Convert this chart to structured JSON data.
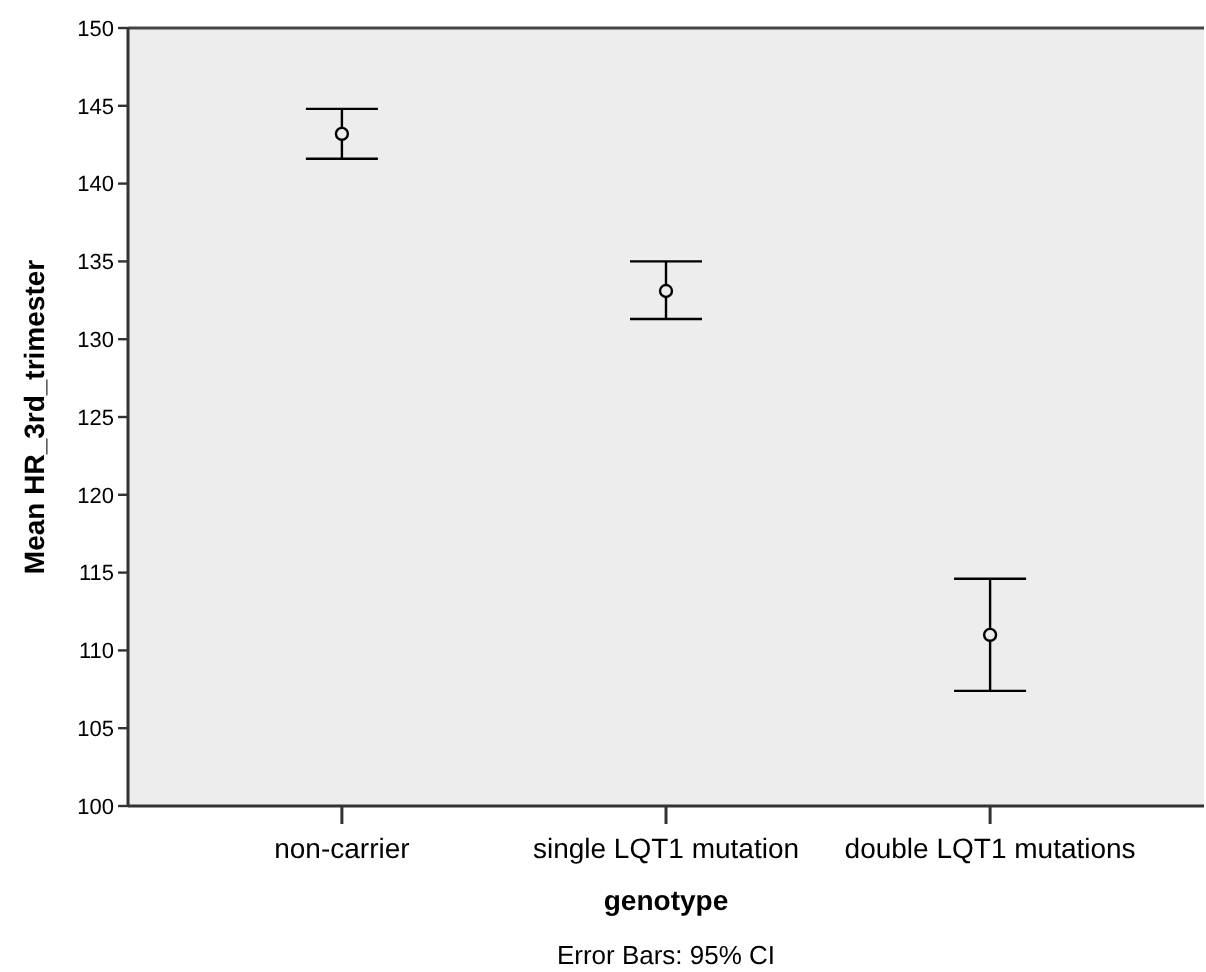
{
  "chart_data": {
    "type": "scatter",
    "xlabel": "genotype",
    "ylabel": "Mean HR_3rd_trimester",
    "categories": [
      "non-carrier",
      "single LQT1 mutation",
      "double LQT1 mutations"
    ],
    "values": [
      143.2,
      133.1,
      111.0
    ],
    "errors": [
      [
        141.6,
        144.8
      ],
      [
        131.3,
        135.0
      ],
      [
        107.4,
        114.6
      ]
    ],
    "color": "#000000",
    "marker": "circle",
    "ylim": [
      100,
      150
    ],
    "yticks": [
      100,
      105,
      110,
      115,
      120,
      125,
      130,
      135,
      140,
      145,
      150
    ],
    "grid": false,
    "annotations": [
      "Error Bars: 95% CI"
    ]
  }
}
